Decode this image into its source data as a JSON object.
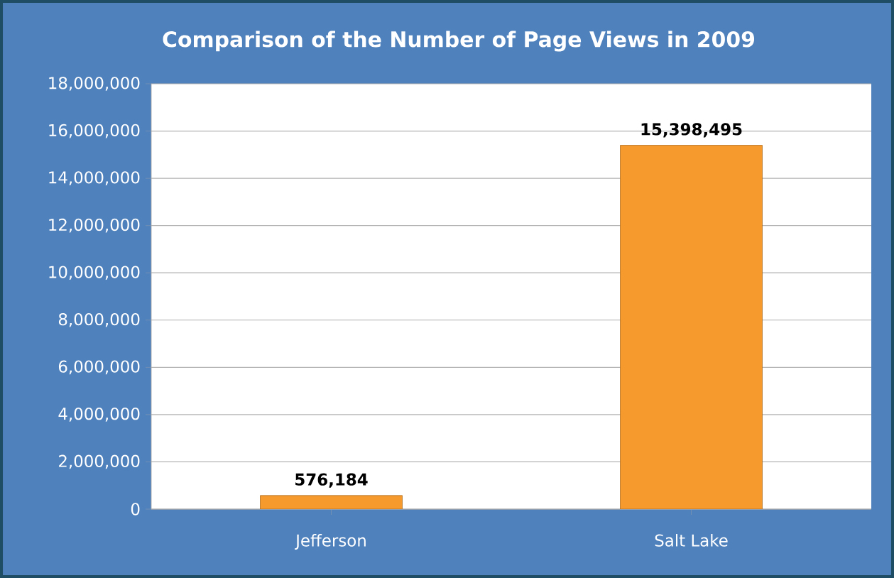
{
  "chart_data": {
    "type": "bar",
    "title": "Comparison of the Number of Page Views in 2009",
    "categories": [
      "Jefferson",
      "Salt Lake"
    ],
    "values": [
      576184,
      15398495
    ],
    "color": "#f79a2e",
    "value_labels": [
      "576,184",
      "15,398,495"
    ],
    "ylim": [
      0,
      18000000
    ],
    "yticks": [
      {
        "value": 0,
        "label": "0"
      },
      {
        "value": 2000000,
        "label": "2,000,000"
      },
      {
        "value": 4000000,
        "label": "4,000,000"
      },
      {
        "value": 6000000,
        "label": "6,000,000"
      },
      {
        "value": 8000000,
        "label": "8,000,000"
      },
      {
        "value": 10000000,
        "label": "10,000,000"
      },
      {
        "value": 12000000,
        "label": "12,000,000"
      },
      {
        "value": 14000000,
        "label": "14,000,000"
      },
      {
        "value": 16000000,
        "label": "16,000,000"
      },
      {
        "value": 18000000,
        "label": "18,000,000"
      }
    ],
    "grid": "y"
  }
}
